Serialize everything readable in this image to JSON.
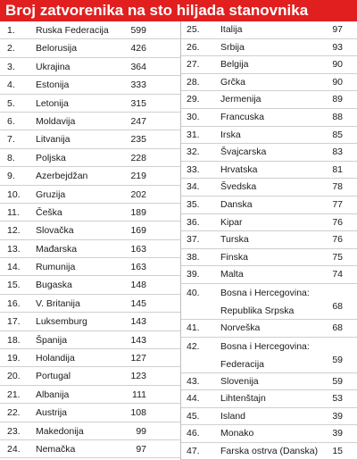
{
  "title": "Broj zatvorenika na sto hiljada stanovnika",
  "left_rows": [
    {
      "num": "1.",
      "name": "Ruska Federacija",
      "value": "599"
    },
    {
      "num": "2.",
      "name": "Belorusija",
      "value": "426"
    },
    {
      "num": "3.",
      "name": "Ukrajina",
      "value": "364"
    },
    {
      "num": "4.",
      "name": "Estonija",
      "value": "333"
    },
    {
      "num": "5.",
      "name": "Letonija",
      "value": "315"
    },
    {
      "num": "6.",
      "name": "Moldavija",
      "value": "247"
    },
    {
      "num": "7.",
      "name": "Litvanija",
      "value": "235"
    },
    {
      "num": "8.",
      "name": "Poljska",
      "value": "228"
    },
    {
      "num": "9.",
      "name": "Azerbejdžan",
      "value": "219"
    },
    {
      "num": "10.",
      "name": "Gruzija",
      "value": "202"
    },
    {
      "num": "11.",
      "name": "Češka",
      "value": "189"
    },
    {
      "num": "12.",
      "name": "Slovačka",
      "value": "169"
    },
    {
      "num": "13.",
      "name": "Mađarska",
      "value": "163"
    },
    {
      "num": "14.",
      "name": "Rumunija",
      "value": "163"
    },
    {
      "num": "15.",
      "name": "Bugaska",
      "value": "148"
    },
    {
      "num": "16.",
      "name": "V. Britanija",
      "value": "145"
    },
    {
      "num": "17.",
      "name": "Luksemburg",
      "value": "143"
    },
    {
      "num": "18.",
      "name": "Španija",
      "value": "143"
    },
    {
      "num": "19.",
      "name": "Holandija",
      "value": "127"
    },
    {
      "num": "20.",
      "name": "Portugal",
      "value": "123"
    },
    {
      "num": "21.",
      "name": "Albanija",
      "value": "111"
    },
    {
      "num": "22.",
      "name": "Austrija",
      "value": "108"
    },
    {
      "num": "23.",
      "name": "Makedonija",
      "value": "99"
    },
    {
      "num": "24.",
      "name": "Nemačka",
      "value": "97"
    }
  ],
  "right_rows": [
    {
      "num": "25.",
      "name": "Italija",
      "value": "97"
    },
    {
      "num": "26.",
      "name": "Srbija",
      "value": "93"
    },
    {
      "num": "27.",
      "name": "Belgija",
      "value": "90"
    },
    {
      "num": "28.",
      "name": "Grčka",
      "value": "90"
    },
    {
      "num": "29.",
      "name": "Jermenija",
      "value": "89"
    },
    {
      "num": "30.",
      "name": "Francuska",
      "value": "88"
    },
    {
      "num": "31.",
      "name": "Irska",
      "value": "85"
    },
    {
      "num": "32.",
      "name": "Švajcarska",
      "value": "83"
    },
    {
      "num": "33.",
      "name": "Hrvatska",
      "value": "81"
    },
    {
      "num": "34.",
      "name": "Švedska",
      "value": "78"
    },
    {
      "num": "35.",
      "name": "Danska",
      "value": "77"
    },
    {
      "num": "36.",
      "name": "Kipar",
      "value": "76"
    },
    {
      "num": "37.",
      "name": "Turska",
      "value": "76"
    },
    {
      "num": "38.",
      "name": "Finska",
      "value": "75"
    },
    {
      "num": "39.",
      "name": "Malta",
      "value": "74"
    },
    {
      "num": "40.",
      "name_line1": "Bosna i Hercegovina:",
      "name_line2": "Republika Srpska",
      "value": "68"
    },
    {
      "num": "41.",
      "name": "Norveška",
      "value": "68"
    },
    {
      "num": "42.",
      "name_line1": "Bosna i Hercegovina:",
      "name_line2": "Federacija",
      "value": "59"
    },
    {
      "num": "43.",
      "name": "Slovenija",
      "value": "59"
    },
    {
      "num": "44.",
      "name": "Lihtenštajn",
      "value": "53"
    },
    {
      "num": "45.",
      "name": "Island",
      "value": "39"
    },
    {
      "num": "46.",
      "name": "Monako",
      "value": "39"
    },
    {
      "num": "47.",
      "name": "Farska ostrva (Danska)",
      "value": "15"
    }
  ]
}
